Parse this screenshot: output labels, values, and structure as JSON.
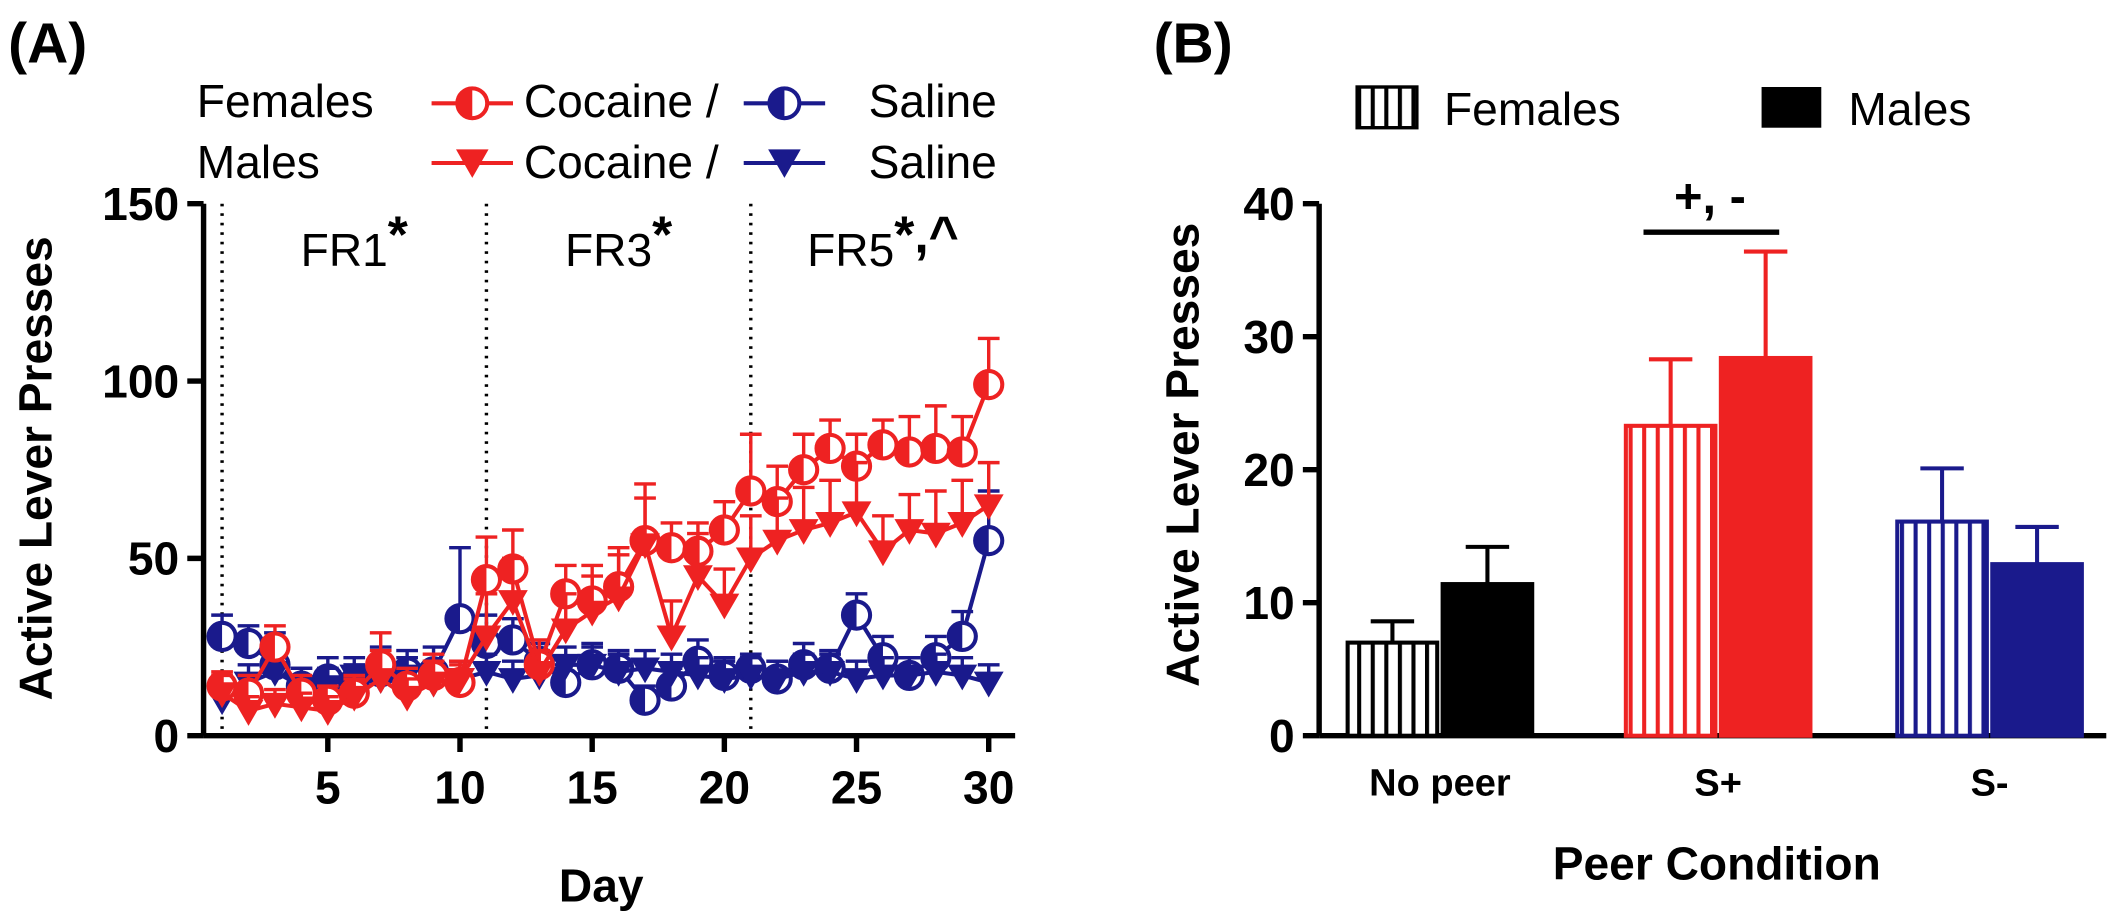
{
  "panels": {
    "a": {
      "label": "(A)"
    },
    "b": {
      "label": "(B)"
    }
  },
  "legend_a": {
    "females": "Females",
    "males": "Males",
    "cocaine": "Cocaine /",
    "saline": "Saline"
  },
  "legend_b": {
    "females": "Females",
    "males": "Males"
  },
  "colors": {
    "cocaine": "#ee2222",
    "saline": "#1a1a8c",
    "nopeer": "#000000"
  },
  "chart_data": [
    {
      "type": "line",
      "xlabel": "Day",
      "ylabel": "Active Lever Presses",
      "xlim": [
        0.3,
        31
      ],
      "ylim": [
        0,
        150
      ],
      "xticks": [
        5,
        10,
        15,
        20,
        25,
        30
      ],
      "yticks": [
        0,
        50,
        100,
        150
      ],
      "phases": [
        {
          "label": "FR1",
          "mark": "*",
          "start": 1
        },
        {
          "label": "FR3",
          "mark": "*",
          "start": 11
        },
        {
          "label": "FR5",
          "mark": "*,^",
          "start": 21
        }
      ],
      "x": [
        1,
        2,
        3,
        4,
        5,
        6,
        7,
        8,
        9,
        10,
        11,
        12,
        13,
        14,
        15,
        16,
        17,
        18,
        19,
        20,
        21,
        22,
        23,
        24,
        25,
        26,
        27,
        28,
        29,
        30
      ],
      "series": [
        {
          "name": "Females Cocaine",
          "values": [
            14,
            12,
            25,
            12,
            10,
            12,
            20,
            14,
            17,
            15,
            44,
            47,
            20,
            40,
            38,
            42,
            55,
            53,
            52,
            58,
            69,
            66,
            75,
            81,
            76,
            82,
            80,
            81,
            80,
            99
          ],
          "errors": [
            4,
            5,
            6,
            5,
            4,
            5,
            9,
            5,
            6,
            5,
            12,
            11,
            7,
            8,
            10,
            11,
            12,
            7,
            8,
            8,
            16,
            10,
            10,
            8,
            9,
            7,
            10,
            12,
            10,
            13
          ]
        },
        {
          "name": "Males Cocaine",
          "values": [
            12,
            7,
            9,
            8,
            7,
            11,
            16,
            11,
            15,
            16,
            28,
            38,
            18,
            30,
            35,
            39,
            54,
            28,
            45,
            37,
            50,
            55,
            58,
            60,
            63,
            52,
            58,
            57,
            60,
            65
          ],
          "errors": [
            5,
            4,
            4,
            4,
            4,
            5,
            8,
            5,
            6,
            5,
            12,
            12,
            6,
            10,
            10,
            12,
            17,
            10,
            12,
            10,
            12,
            12,
            12,
            12,
            14,
            10,
            10,
            12,
            12,
            12
          ]
        },
        {
          "name": "Females Saline",
          "values": [
            28,
            26,
            20,
            14,
            16,
            15,
            18,
            18,
            18,
            33,
            26,
            27,
            21,
            15,
            20,
            19,
            10,
            14,
            21,
            17,
            19,
            16,
            20,
            19,
            34,
            22,
            17,
            22,
            28,
            55
          ],
          "errors": [
            6,
            5,
            9,
            5,
            6,
            5,
            7,
            6,
            7,
            20,
            8,
            6,
            5,
            5,
            6,
            5,
            4,
            5,
            6,
            5,
            4,
            5,
            6,
            5,
            6,
            6,
            5,
            6,
            7,
            14
          ]
        },
        {
          "name": "Males Saline",
          "values": [
            10,
            15,
            18,
            14,
            14,
            17,
            16,
            17,
            15,
            16,
            18,
            16,
            17,
            20,
            20,
            18,
            19,
            18,
            17,
            16,
            17,
            16,
            18,
            18,
            16,
            17,
            17,
            18,
            17,
            15
          ],
          "errors": [
            4,
            5,
            5,
            5,
            5,
            5,
            5,
            5,
            5,
            5,
            5,
            5,
            5,
            5,
            5,
            5,
            5,
            5,
            5,
            5,
            5,
            5,
            5,
            5,
            5,
            5,
            5,
            5,
            5,
            5
          ]
        }
      ]
    },
    {
      "type": "bar",
      "xlabel": "Peer Condition",
      "ylabel": "Active Lever Presses",
      "ylim": [
        0,
        40
      ],
      "yticks": [
        0,
        10,
        20,
        30,
        40
      ],
      "categories": [
        "No peer",
        "S+",
        "S-"
      ],
      "series": [
        {
          "name": "Females",
          "values": [
            7,
            23.3,
            16.1
          ],
          "errors": [
            1.6,
            5,
            4
          ]
        },
        {
          "name": "Males",
          "values": [
            11.4,
            28.4,
            12.9
          ],
          "errors": [
            2.8,
            8,
            2.8
          ]
        }
      ],
      "annotation": "+, -"
    }
  ]
}
